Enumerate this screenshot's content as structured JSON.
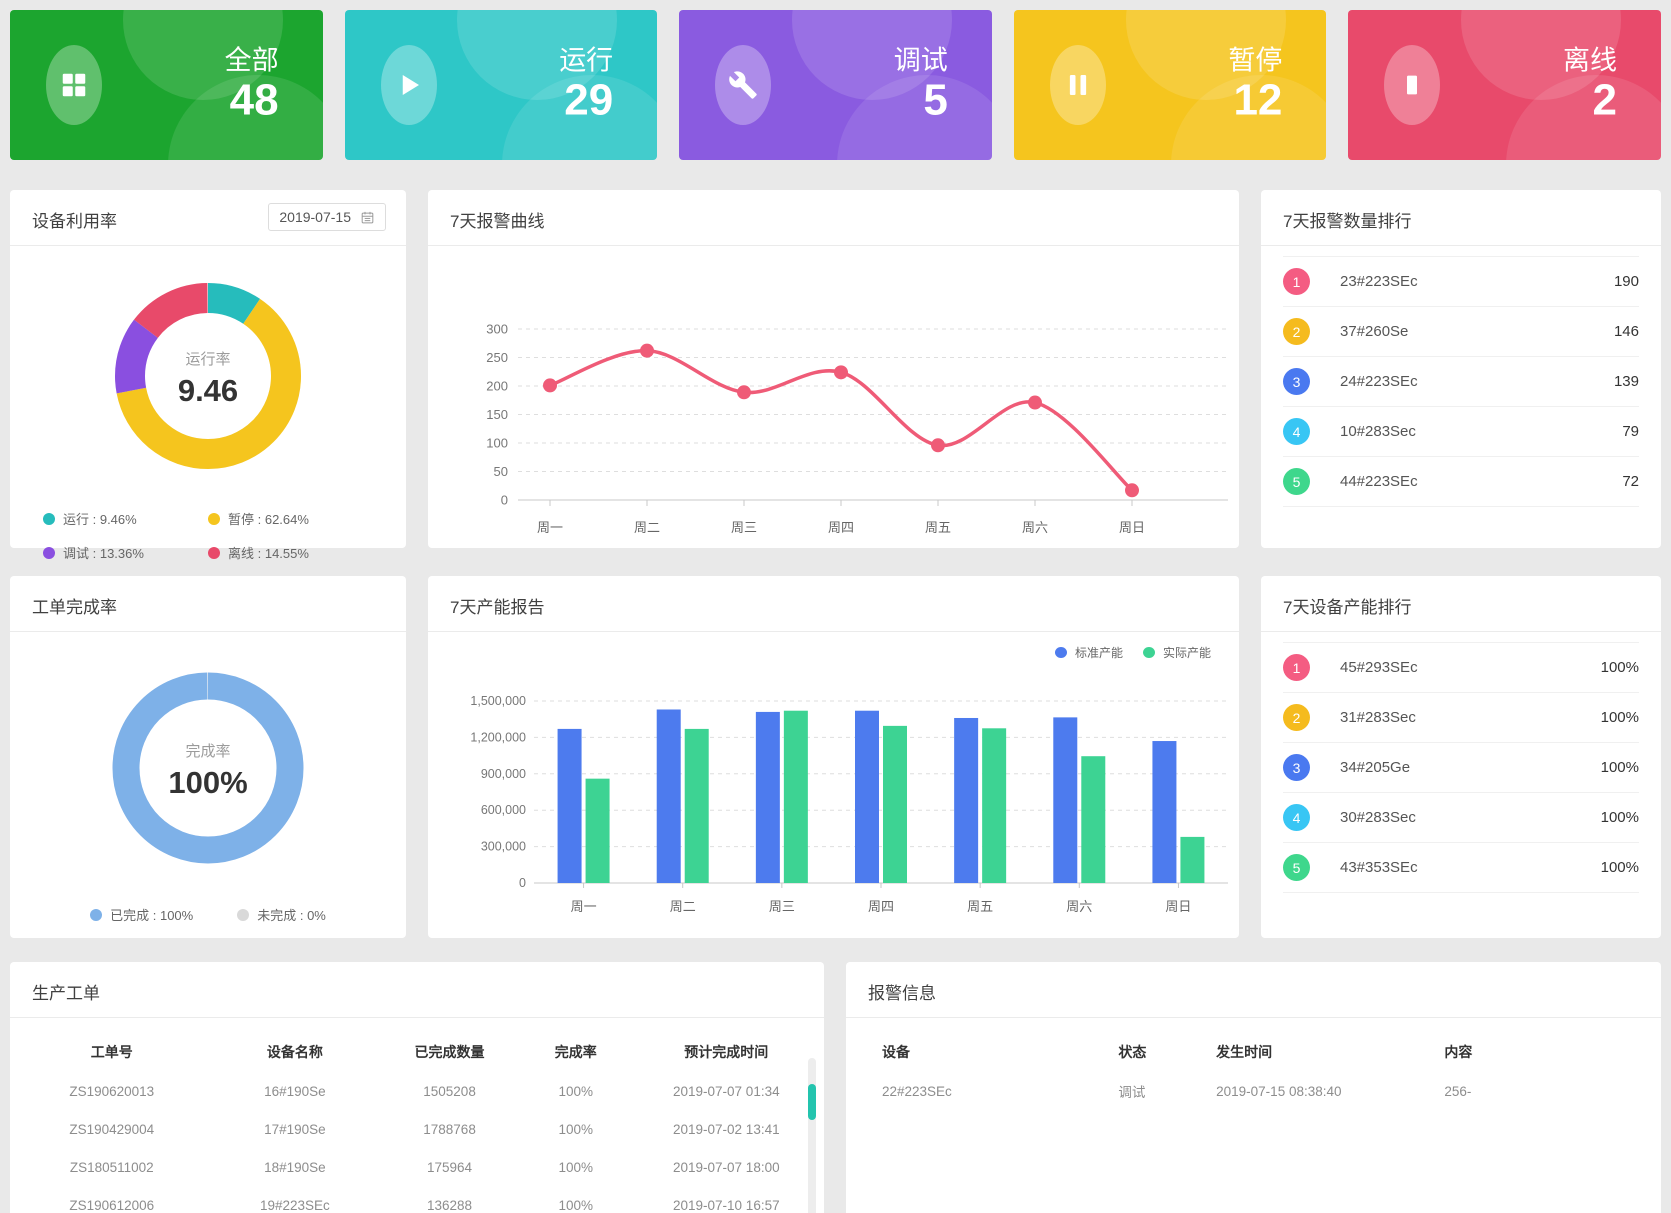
{
  "stat_cards": [
    {
      "icon": "grid-icon",
      "label": "全部",
      "value": "48",
      "color": "#1CA52F"
    },
    {
      "icon": "play-icon",
      "label": "运行",
      "value": "29",
      "color": "#2EC7C7"
    },
    {
      "icon": "wrench-icon",
      "label": "调试",
      "value": "5",
      "color": "#8A5BE0"
    },
    {
      "icon": "pause-icon",
      "label": "暂停",
      "value": "12",
      "color": "#F5C51E"
    },
    {
      "icon": "stop-icon",
      "label": "离线",
      "value": "2",
      "color": "#E84A6B"
    }
  ],
  "utilization": {
    "title": "设备利用率",
    "date": "2019-07-15",
    "date_icon": "calendar-icon",
    "center_label": "运行率",
    "center_value": "9.46",
    "legend": [
      {
        "text": "运行 : 9.46%",
        "color": "#26BCBC"
      },
      {
        "text": "暂停 : 62.64%",
        "color": "#F5C51E"
      },
      {
        "text": "调试 : 13.36%",
        "color": "#8A4FE0"
      },
      {
        "text": "离线 : 14.55%",
        "color": "#E84A6A"
      }
    ]
  },
  "alarm_ranking": {
    "title": "7天报警数量排行",
    "items": [
      {
        "rank": "1",
        "color": "#F45C82",
        "name": "23#223SEc",
        "value": "190"
      },
      {
        "rank": "2",
        "color": "#F5BB1E",
        "name": "37#260Se",
        "value": "146"
      },
      {
        "rank": "3",
        "color": "#4A79F0",
        "name": "24#223SEc",
        "value": "139"
      },
      {
        "rank": "4",
        "color": "#38C6F4",
        "name": "10#283Sec",
        "value": "79"
      },
      {
        "rank": "5",
        "color": "#3ED78C",
        "name": "44#223SEc",
        "value": "72"
      }
    ]
  },
  "completion": {
    "title": "工单完成率",
    "center_label": "完成率",
    "center_value": "100%",
    "ring_color": "#7EB1E8",
    "legend": [
      {
        "text": "已完成 : 100%",
        "color": "#7EB1E8"
      },
      {
        "text": "未完成 : 0%",
        "color": "#D9D9D9"
      }
    ]
  },
  "capacity_ranking": {
    "title": "7天设备产能排行",
    "items": [
      {
        "rank": "1",
        "color": "#F45C82",
        "name": "45#293SEc",
        "value": "100%"
      },
      {
        "rank": "2",
        "color": "#F5BB1E",
        "name": "31#283Sec",
        "value": "100%"
      },
      {
        "rank": "3",
        "color": "#4A79F0",
        "name": "34#205Ge",
        "value": "100%"
      },
      {
        "rank": "4",
        "color": "#38C6F4",
        "name": "30#283Sec",
        "value": "100%"
      },
      {
        "rank": "5",
        "color": "#3ED78C",
        "name": "43#353SEc",
        "value": "100%"
      }
    ]
  },
  "work_orders": {
    "title": "生产工单",
    "headers": [
      "工单号",
      "设备名称",
      "已完成数量",
      "完成率",
      "预计完成时间"
    ],
    "rows": [
      [
        "ZS190620013",
        "16#190Se",
        "1505208",
        "100%",
        "2019-07-07 01:34"
      ],
      [
        "ZS190429004",
        "17#190Se",
        "1788768",
        "100%",
        "2019-07-02 13:41"
      ],
      [
        "ZS180511002",
        "18#190Se",
        "175964",
        "100%",
        "2019-07-07 18:00"
      ],
      [
        "ZS190612006",
        "19#223SEc",
        "136288",
        "100%",
        "2019-07-10 16:57"
      ]
    ]
  },
  "alarm_info": {
    "title": "报警信息",
    "headers": [
      "设备",
      "状态",
      "发生时间",
      "内容"
    ],
    "rows": [
      [
        "22#223SEc",
        "调试",
        "2019-07-15 08:38:40",
        "256-"
      ]
    ]
  },
  "chart_data": [
    {
      "id": "alarm_curve",
      "type": "line",
      "title": "7天报警曲线",
      "categories": [
        "周一",
        "周二",
        "周三",
        "周四",
        "周五",
        "周六",
        "周日"
      ],
      "values": [
        201,
        262,
        189,
        224,
        96,
        171,
        17
      ],
      "color": "#EF5B77",
      "xlabel": "",
      "ylabel": "",
      "ylim": [
        0,
        300
      ],
      "ytick_step": 50,
      "grid": "dashed-horizontal",
      "smooth": true
    },
    {
      "id": "capacity_report",
      "type": "bar",
      "title": "7天产能报告",
      "categories": [
        "周一",
        "周二",
        "周三",
        "周四",
        "周五",
        "周六",
        "周日"
      ],
      "series": [
        {
          "name": "标准产能",
          "color": "#4D7BEE",
          "values": [
            1270000,
            1430000,
            1410000,
            1420000,
            1360000,
            1365000,
            1170000
          ]
        },
        {
          "name": "实际产能",
          "color": "#3DD393",
          "values": [
            860000,
            1270000,
            1420000,
            1295000,
            1275000,
            1045000,
            380000
          ]
        }
      ],
      "xlabel": "",
      "ylabel": "",
      "ylim": [
        0,
        1500000
      ],
      "ytick_step": 300000,
      "legend_position": "top-right",
      "grid": "dashed-horizontal"
    },
    {
      "id": "utilization_donut",
      "type": "pie",
      "title": "设备利用率",
      "slices": [
        {
          "label": "运行",
          "value": 9.46,
          "color": "#26BCBC"
        },
        {
          "label": "暂停",
          "value": 62.64,
          "color": "#F5C51E"
        },
        {
          "label": "调试",
          "value": 13.36,
          "color": "#8A4FE0"
        },
        {
          "label": "离线",
          "value": 14.55,
          "color": "#E84A6A"
        }
      ],
      "center_label": "运行率",
      "center_value": "9.46"
    },
    {
      "id": "completion_donut",
      "type": "pie",
      "title": "工单完成率",
      "slices": [
        {
          "label": "已完成",
          "value": 100,
          "color": "#7EB1E8"
        },
        {
          "label": "未完成",
          "value": 0,
          "color": "#D9D9D9"
        }
      ],
      "center_label": "完成率",
      "center_value": "100%"
    }
  ]
}
